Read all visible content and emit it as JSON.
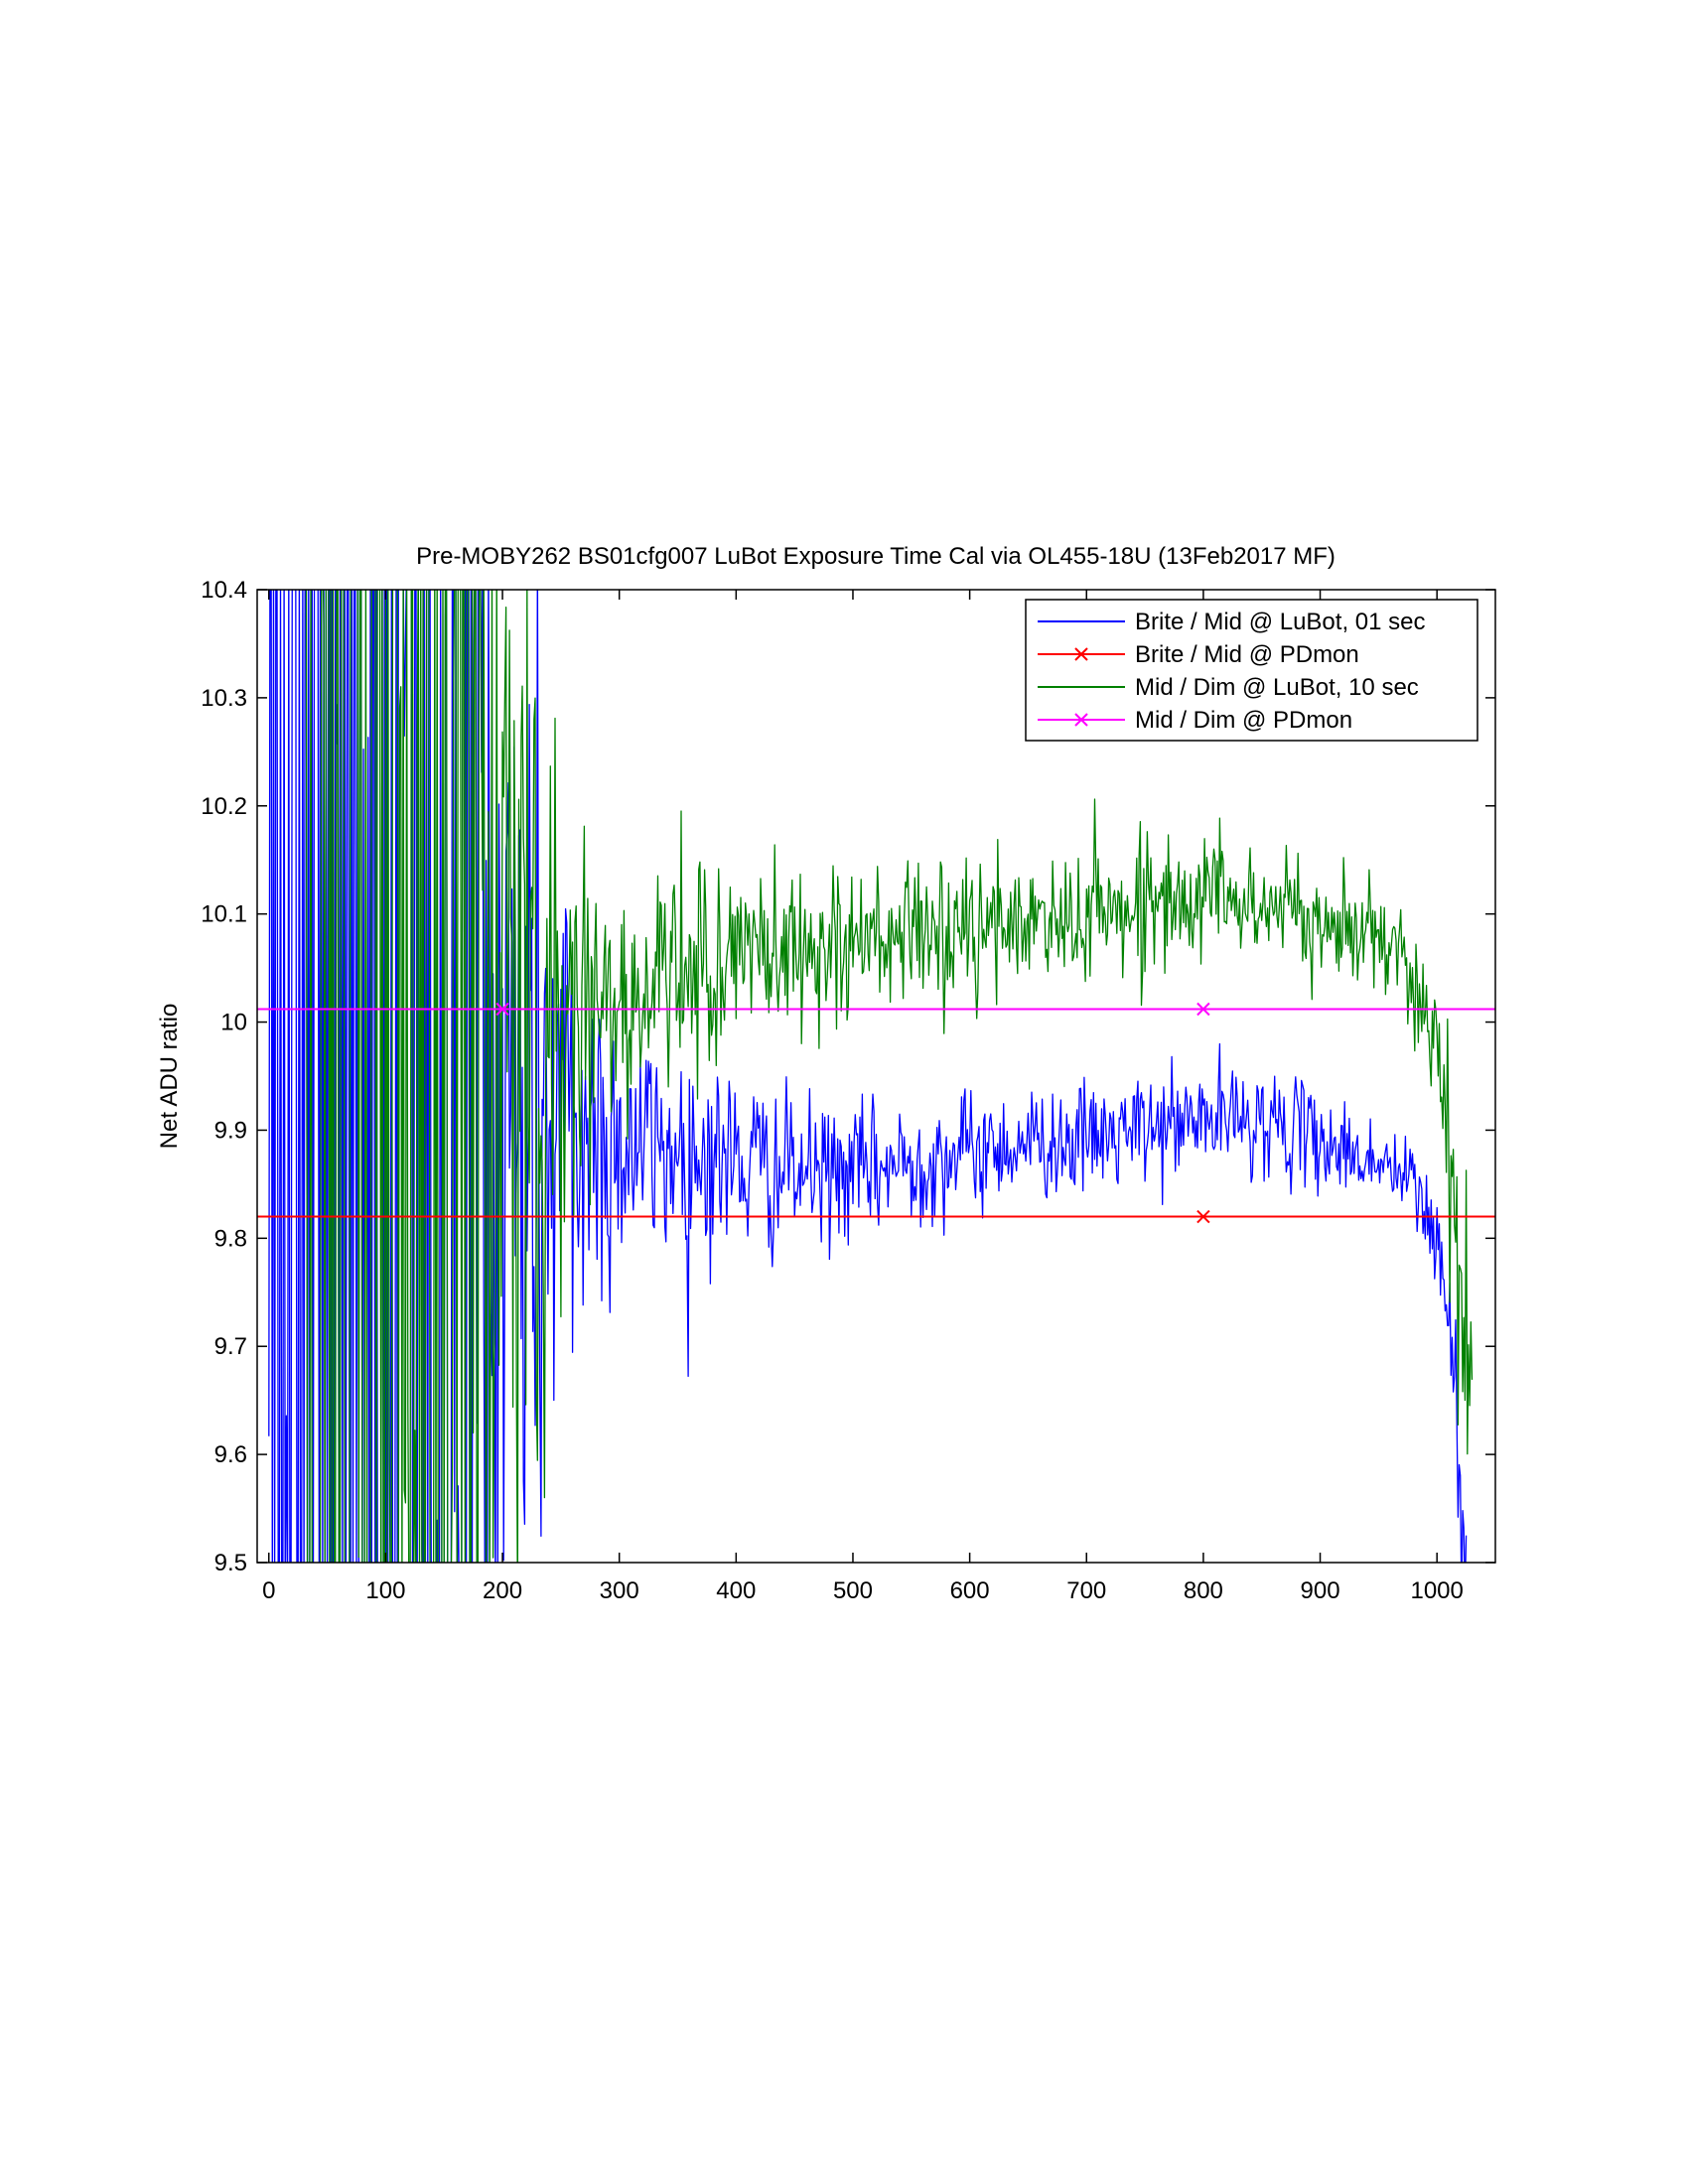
{
  "chart_data": {
    "type": "line",
    "title": "Pre-MOBY262 BS01cfg007 LuBot Exposure Time Cal via OL455-18U  (13Feb2017 MF)",
    "xlabel": "",
    "ylabel": "Net ADU ratio",
    "xlim": [
      -10,
      1050
    ],
    "ylim": [
      9.5,
      10.4
    ],
    "xticks": [
      0,
      100,
      200,
      300,
      400,
      500,
      600,
      700,
      800,
      900,
      1000
    ],
    "yticks": [
      9.5,
      9.6,
      9.7,
      9.8,
      9.9,
      10,
      10.1,
      10.2,
      10.3,
      10.4
    ],
    "xtick_labels": [
      "0",
      "100",
      "200",
      "300",
      "400",
      "500",
      "600",
      "700",
      "800",
      "900",
      "1000"
    ],
    "ytick_labels": [
      "9.5",
      "9.6",
      "9.7",
      "9.8",
      "9.9",
      "10",
      "10.1",
      "10.2",
      "10.3",
      "10.4"
    ],
    "grid": false,
    "legend_position": "top-right",
    "series": [
      {
        "name": "Brite / Mid @ LuBot, 01 sec",
        "color": "#0000ff",
        "marker": "none",
        "style": "noisy",
        "x": [
          0,
          50,
          100,
          150,
          200,
          250,
          300,
          350,
          400,
          450,
          500,
          550,
          600,
          650,
          700,
          750,
          800,
          850,
          900,
          950,
          980,
          1000,
          1010,
          1020,
          1025
        ],
        "y": [
          9.95,
          9.95,
          9.95,
          9.95,
          9.92,
          9.9,
          9.89,
          9.88,
          9.87,
          9.86,
          9.86,
          9.87,
          9.88,
          9.89,
          9.89,
          9.9,
          9.91,
          9.91,
          9.89,
          9.87,
          9.85,
          9.8,
          9.72,
          9.58,
          9.52
        ],
        "noise": [
          2.0,
          2.0,
          2.0,
          2.0,
          0.35,
          0.15,
          0.06,
          0.05,
          0.045,
          0.035,
          0.03,
          0.03,
          0.028,
          0.025,
          0.025,
          0.025,
          0.025,
          0.025,
          0.022,
          0.02,
          0.02,
          0.03,
          0.04,
          0.05,
          0.05
        ]
      },
      {
        "name": "Brite / Mid @ PDmon",
        "color": "#ff0000",
        "marker": "x",
        "style": "constant",
        "value": 9.82,
        "marker_x": [
          800
        ]
      },
      {
        "name": "Mid / Dim @ LuBot, 10 sec",
        "color": "#008000",
        "marker": "none",
        "style": "noisy",
        "x": [
          30,
          50,
          100,
          150,
          200,
          250,
          300,
          350,
          400,
          450,
          500,
          550,
          600,
          650,
          700,
          750,
          800,
          850,
          900,
          950,
          980,
          1000,
          1010,
          1020,
          1030
        ],
        "y": [
          9.95,
          9.95,
          9.95,
          9.95,
          9.98,
          10.0,
          10.02,
          10.04,
          10.06,
          10.07,
          10.07,
          10.08,
          10.08,
          10.09,
          10.1,
          10.11,
          10.12,
          10.11,
          10.09,
          10.08,
          10.05,
          9.98,
          9.9,
          9.78,
          9.65
        ],
        "noise": [
          2.0,
          2.0,
          2.0,
          2.0,
          0.35,
          0.12,
          0.055,
          0.05,
          0.045,
          0.04,
          0.035,
          0.035,
          0.035,
          0.03,
          0.03,
          0.028,
          0.028,
          0.025,
          0.025,
          0.025,
          0.025,
          0.035,
          0.05,
          0.07,
          0.08
        ]
      },
      {
        "name": "Mid / Dim @ PDmon",
        "color": "#ff00ff",
        "marker": "x",
        "style": "constant",
        "value": 10.012,
        "marker_x": [
          200,
          800
        ]
      }
    ]
  }
}
